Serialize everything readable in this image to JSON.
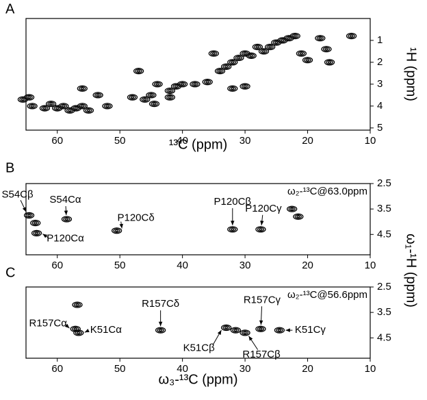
{
  "chart_data": [
    {
      "type": "scatter",
      "label": "A",
      "xlabel": "¹³C (ppm)",
      "ylabel": "¹H (ppm)",
      "xlim": [
        65,
        10
      ],
      "ylim": [
        0,
        5.1
      ],
      "xticks": [
        60,
        50,
        40,
        30,
        20,
        10
      ],
      "yticks": [
        1,
        2,
        3,
        4,
        5
      ],
      "color": "#000000",
      "x": [
        65.5,
        64,
        62,
        60,
        59,
        58,
        57,
        56,
        55,
        61,
        64.5,
        56,
        52,
        53.5,
        48,
        46,
        45,
        44.5,
        42,
        41,
        40,
        42,
        38,
        36,
        34,
        33,
        32,
        31,
        30,
        29,
        28,
        27,
        26,
        25,
        24,
        23,
        22,
        21,
        20,
        18,
        17,
        16.5,
        13,
        30,
        35,
        32,
        44,
        47
      ],
      "values": [
        3.7,
        4.0,
        4.1,
        4.1,
        4.0,
        4.2,
        4.1,
        4.0,
        4.2,
        3.9,
        3.6,
        3.2,
        4.0,
        3.5,
        3.6,
        3.7,
        3.5,
        3.9,
        3.6,
        3.1,
        3.0,
        3.3,
        3.0,
        2.9,
        2.4,
        2.2,
        2.0,
        1.8,
        1.6,
        1.7,
        1.3,
        1.5,
        1.3,
        1.1,
        1.0,
        0.9,
        0.8,
        1.6,
        1.9,
        0.9,
        1.4,
        2.0,
        0.8,
        3.1,
        1.6,
        3.2,
        3.0,
        2.4
      ]
    },
    {
      "type": "scatter",
      "label": "B",
      "annotation": "ω₂-¹³C@63.0ppm",
      "xlim": [
        65,
        10
      ],
      "ylim": [
        2.5,
        5.3
      ],
      "xticks": [
        60,
        50,
        40,
        30,
        20,
        10
      ],
      "yticks": [
        2.5,
        3.5,
        4.5
      ],
      "color": "#000000",
      "x": [
        64.5,
        58.5,
        63.3,
        50.5,
        32.0,
        27.5,
        22.5,
        21.5,
        63.5
      ],
      "values": [
        3.75,
        3.9,
        4.45,
        4.35,
        4.3,
        4.3,
        3.5,
        3.8,
        4.05
      ],
      "point_labels": [
        "S54Cβ",
        "S54Cα",
        "P120Cα",
        "P120Cδ",
        "P120Cβ",
        "P120Cγ",
        null,
        null,
        null
      ]
    },
    {
      "type": "scatter",
      "label": "C",
      "annotation": "ω₂-¹³C@56.6ppm",
      "xlabel": "ω₃-¹³C (ppm)",
      "ylabel": "ω₁-¹H (ppm)",
      "xlim": [
        65,
        10
      ],
      "ylim": [
        2.5,
        5.3
      ],
      "xticks": [
        60,
        50,
        40,
        30,
        20,
        10
      ],
      "yticks": [
        2.5,
        3.5,
        4.5
      ],
      "color": "#000000",
      "x": [
        57.1,
        56.6,
        43.5,
        33.0,
        30.0,
        27.5,
        24.5,
        56.8,
        31.5
      ],
      "values": [
        4.15,
        4.3,
        4.2,
        4.1,
        4.3,
        4.15,
        4.2,
        3.2,
        4.2
      ],
      "point_labels": [
        "R157Cα",
        "K51Cα",
        "R157Cδ",
        "K51Cβ",
        "R157Cβ",
        "R157Cγ",
        "K51Cγ",
        null,
        null
      ]
    }
  ]
}
